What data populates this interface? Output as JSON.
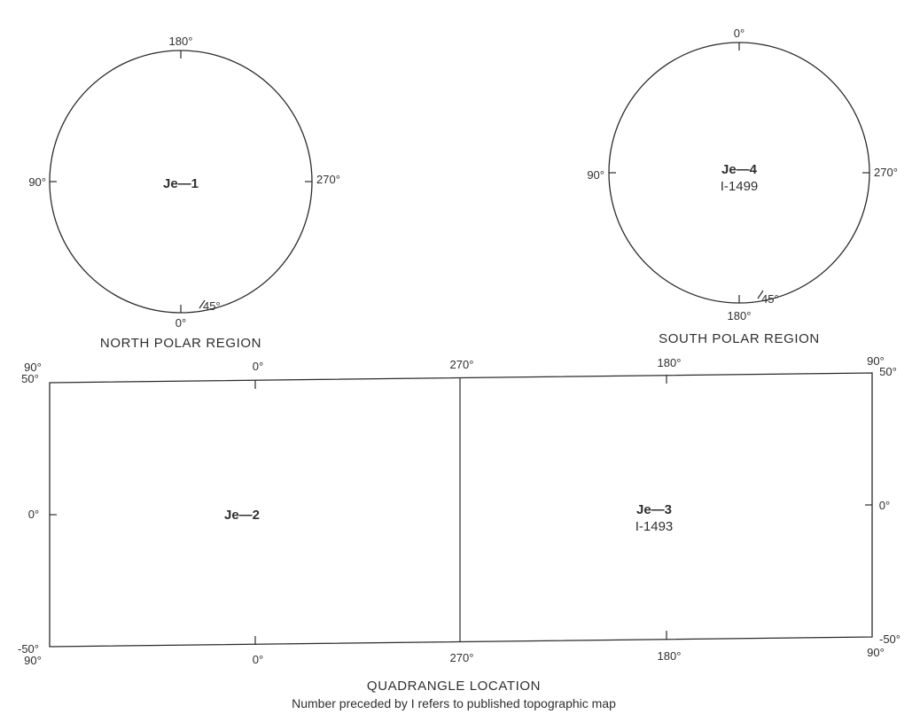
{
  "north_polar": {
    "name": "Je—1",
    "caption": "NORTH POLAR REGION",
    "label_top": "180°",
    "label_bottom": "0°",
    "label_left": "90°",
    "label_right": "270°",
    "label_45": "45°",
    "published": false
  },
  "south_polar": {
    "name": "Je—4",
    "map_number": "I-1499",
    "caption": "SOUTH POLAR REGION",
    "label_top": "0°",
    "label_bottom": "180°",
    "label_left": "90°",
    "label_right": "270°",
    "label_45": "45°",
    "published": true
  },
  "equatorial": {
    "top_longitudes": [
      "90°",
      "0°",
      "270°",
      "180°",
      "90°"
    ],
    "bottom_longitudes": [
      "90°",
      "0°",
      "270°",
      "180°",
      "90°"
    ],
    "left_latitudes": [
      "50°",
      "0°",
      "-50°"
    ],
    "right_latitudes": [
      "50°",
      "0°",
      "-50°"
    ],
    "quadrangles": [
      {
        "name": "Je—2",
        "map_number": "",
        "published": false
      },
      {
        "name": "Je—3",
        "map_number": "I-1493",
        "published": false
      }
    ]
  },
  "caption": "QUADRANGLE LOCATION",
  "subcaption": "Number preceded by I refers to published topographic map"
}
